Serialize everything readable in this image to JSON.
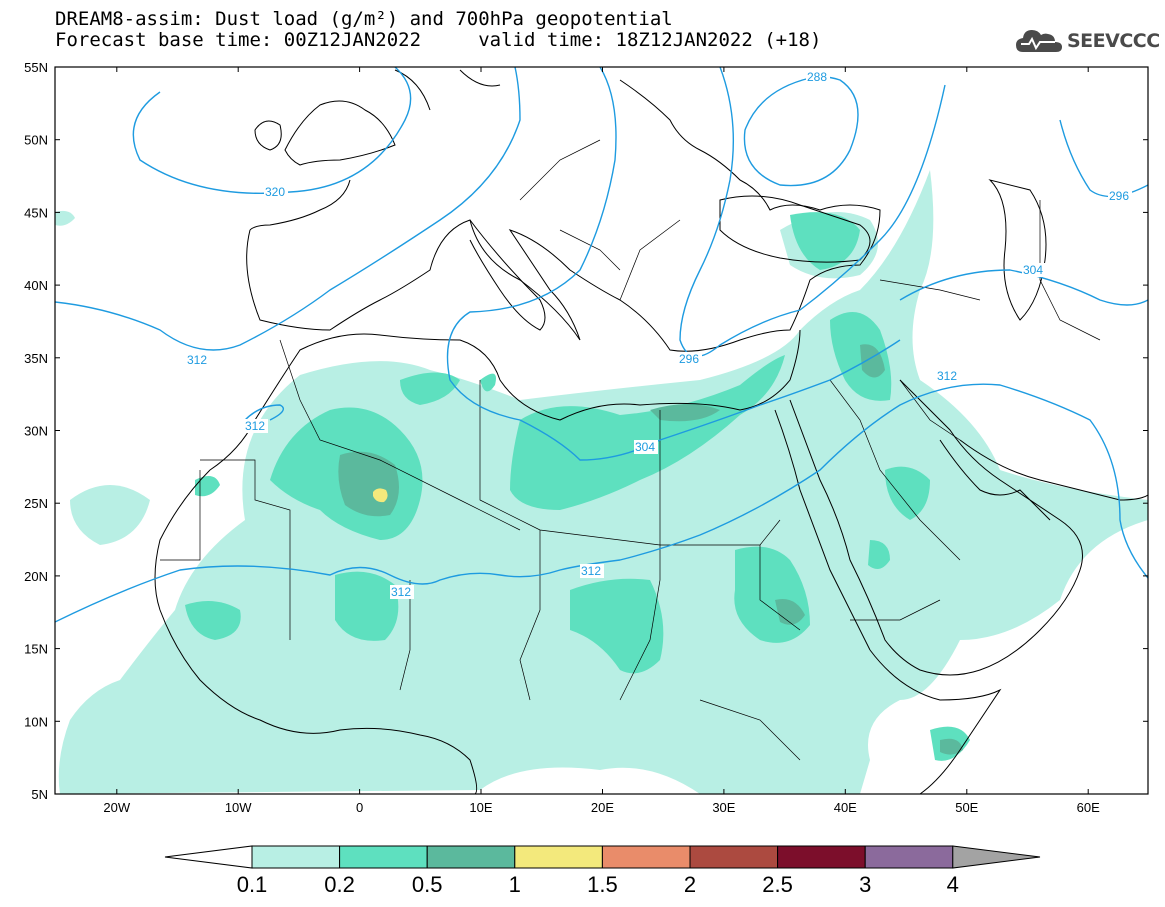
{
  "header": {
    "title_line1": "DREAM8-assim: Dust load (g/m²) and 700hPa geopotential",
    "title_line2": "Forecast base time: 00Z12JAN2022     valid time: 18Z12JAN2022 (+18)"
  },
  "logo": {
    "text": "SEEVCCC",
    "icon": "cloud-logo-icon"
  },
  "map": {
    "lon_labels": [
      "20W",
      "10W",
      "0",
      "10E",
      "20E",
      "30E",
      "40E",
      "50E",
      "60E"
    ],
    "lat_labels": [
      "55N",
      "50N",
      "45N",
      "40N",
      "35N",
      "30N",
      "25N",
      "20N",
      "15N",
      "10N",
      "5N"
    ],
    "lon_range": [
      -25,
      65
    ],
    "lat_range": [
      5,
      55
    ],
    "contour_labels": [
      "288",
      "296",
      "296",
      "304",
      "304",
      "312",
      "312",
      "312",
      "312",
      "312",
      "320"
    ],
    "contour_color": "#1e9be0"
  },
  "colorbar": {
    "tick_labels": [
      "0.1",
      "0.2",
      "0.5",
      "1",
      "1.5",
      "2",
      "2.5",
      "3",
      "4"
    ],
    "colors": [
      "#b8efe4",
      "#5ee0bf",
      "#5bb99d",
      "#f3e97c",
      "#e98c6a",
      "#ac4a40",
      "#7c0e2b",
      "#8b6a9c",
      "#a3a3a3"
    ]
  }
}
